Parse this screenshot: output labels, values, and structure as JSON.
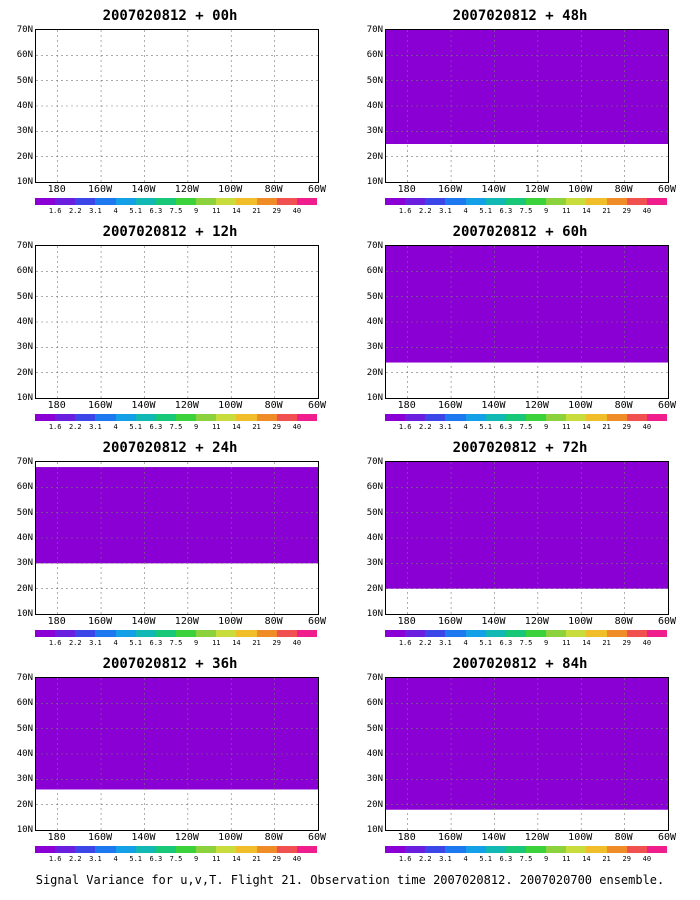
{
  "caption": "Signal Variance for u,v,T. Flight 21. Observation time 2007020812. 2007020700 ensemble.",
  "lat_labels": [
    "70N",
    "60N",
    "50N",
    "40N",
    "30N",
    "20N",
    "10N"
  ],
  "lon_labels": [
    "180",
    "160W",
    "140W",
    "120W",
    "100W",
    "80W",
    "60W"
  ],
  "colorbar": {
    "labels": [
      "1.6",
      "2.2",
      "3.1",
      "4",
      "5.1",
      "6.3",
      "7.5",
      "9",
      "11",
      "14",
      "21",
      "29",
      "40"
    ],
    "colors": [
      "#8a00d4",
      "#6a1ee0",
      "#3c46e8",
      "#1e78f0",
      "#14a0e6",
      "#12b9b4",
      "#18c878",
      "#3cd23c",
      "#8cd23c",
      "#c8dc3c",
      "#f0be28",
      "#f08c28",
      "#f05050",
      "#f01e8c"
    ]
  },
  "panels": [
    {
      "title": "2007020812 + 00h",
      "forecast_hour": 0
    },
    {
      "title": "2007020812 + 48h",
      "forecast_hour": 48
    },
    {
      "title": "2007020812 + 12h",
      "forecast_hour": 12
    },
    {
      "title": "2007020812 + 60h",
      "forecast_hour": 60
    },
    {
      "title": "2007020812 + 24h",
      "forecast_hour": 24
    },
    {
      "title": "2007020812 + 72h",
      "forecast_hour": 72
    },
    {
      "title": "2007020812 + 36h",
      "forecast_hour": 36
    },
    {
      "title": "2007020812 + 84h",
      "forecast_hour": 84
    }
  ]
}
